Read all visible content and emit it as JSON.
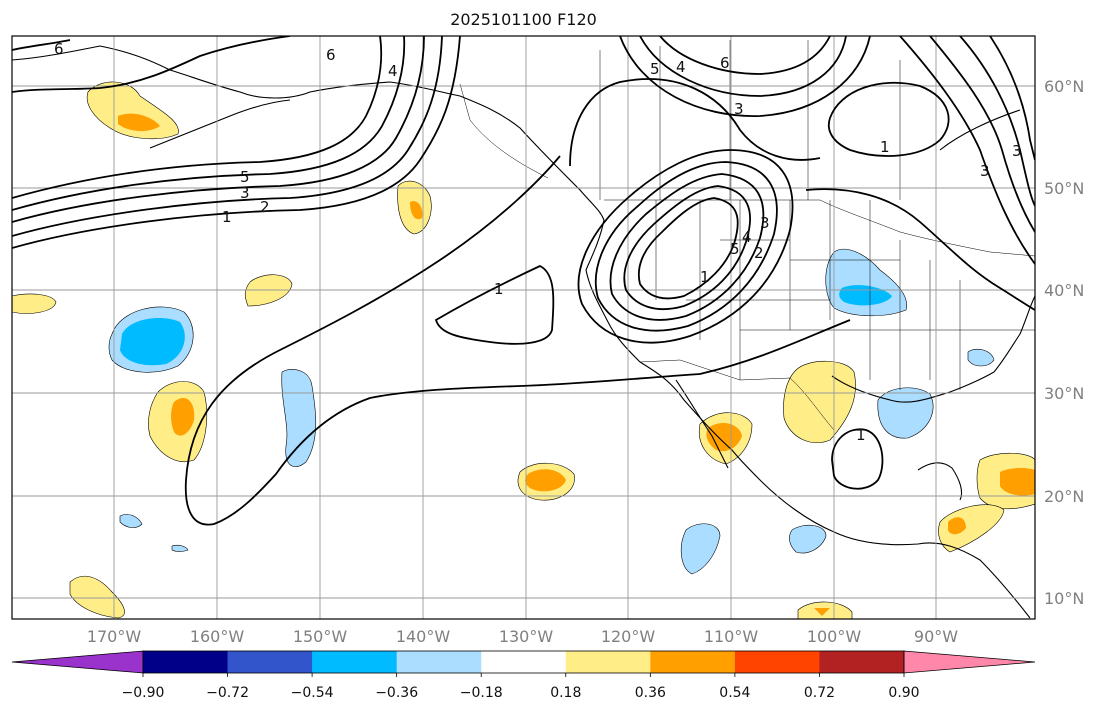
{
  "title": "2025101100 F120",
  "lat_labels": [
    "60°N",
    "50°N",
    "40°N",
    "30°N",
    "20°N",
    "10°N"
  ],
  "lon_labels": [
    "170°W",
    "160°W",
    "150°W",
    "140°W",
    "130°W",
    "120°W",
    "110°W",
    "100°W",
    "90°W"
  ],
  "colorbar": {
    "colors": [
      "#9933cc",
      "#000088",
      "#3355cc",
      "#00bbff",
      "#aaddff",
      "#ffffff",
      "#ffee88",
      "#ffa000",
      "#ff4400",
      "#b22222",
      "#ff88aa"
    ],
    "tick_labels": [
      "−0.90",
      "−0.72",
      "−0.54",
      "−0.36",
      "−0.18",
      "0.18",
      "0.36",
      "0.54",
      "0.72",
      "0.90"
    ]
  },
  "contour_labels": [
    "6",
    "5",
    "4",
    "6",
    "3",
    "1",
    "5",
    "3",
    "2",
    "1",
    "1",
    "5",
    "3",
    "4",
    "3",
    "2",
    "4",
    "1",
    "6",
    "3",
    "1"
  ],
  "colors": {
    "contour": "#000000",
    "grid": "#999999",
    "coast": "#000000"
  }
}
